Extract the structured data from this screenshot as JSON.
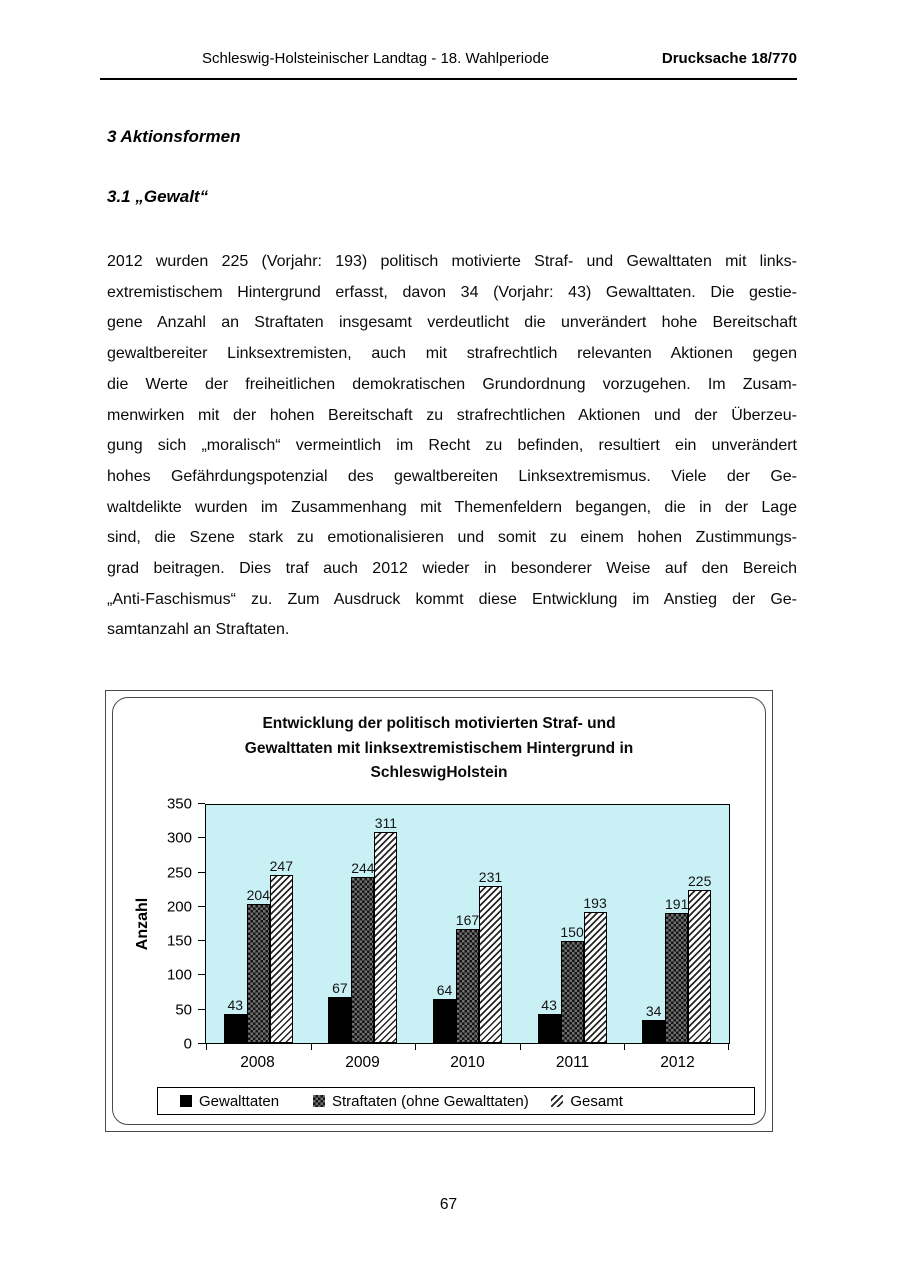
{
  "header": {
    "left": "Schleswig-Holsteinischer Landtag - 18. Wahlperiode",
    "right": "Drucksache 18/770"
  },
  "headings": {
    "section": "3 Aktionsformen",
    "subsection": "3.1 „Gewalt“"
  },
  "body": {
    "paragraph_lines": [
      "2012 wurden 225 (Vorjahr: 193) politisch motivierte Straf- und Gewalttaten mit links-",
      "extremistischem Hintergrund erfasst, davon 34 (Vorjahr: 43) Gewalttaten. Die gestie-",
      "gene Anzahl an Straftaten insgesamt verdeutlicht die unverändert hohe Bereitschaft",
      "gewaltbereiter Linksextremisten, auch mit strafrechtlich relevanten Aktionen gegen",
      "die Werte der freiheitlichen demokratischen Grundordnung vorzugehen. Im Zusam-",
      "menwirken mit der hohen Bereitschaft zu strafrechtlichen Aktionen und der Überzeu-",
      "gung sich „moralisch“ vermeintlich im Recht zu befinden, resultiert ein unverändert",
      "hohes Gefährdungspotenzial des gewaltbereiten Linksextremismus. Viele der Ge-",
      "waltdelikte wurden im Zusammenhang mit Themenfeldern begangen, die in der Lage",
      "sind, die Szene stark zu emotionalisieren und somit zu einem hohen Zustimmungs-",
      "grad beitragen. Dies traf auch 2012 wieder in besonderer Weise auf den Bereich",
      "„Anti-Faschismus“ zu. Zum Ausdruck kommt diese Entwicklung im Anstieg der Ge-",
      "samtanzahl an Straftaten."
    ]
  },
  "chart_data": {
    "type": "bar",
    "title": "Entwicklung der politisch motivierten Straf- und Gewalttaten mit linksextremistischem Hintergrund in SchleswigHolstein",
    "title_lines": [
      "Entwicklung der politisch motivierten Straf- und",
      "Gewalttaten mit linksextremistischem Hintergrund in",
      "SchleswigHolstein"
    ],
    "xlabel": "",
    "ylabel": "Anzahl",
    "ylim": [
      0,
      350
    ],
    "yticks": [
      0,
      50,
      100,
      150,
      200,
      250,
      300,
      350
    ],
    "categories": [
      "2008",
      "2009",
      "2010",
      "2011",
      "2012"
    ],
    "series": [
      {
        "name": "Gewalttaten",
        "pattern": "solid-black",
        "values": [
          43,
          67,
          64,
          43,
          34
        ]
      },
      {
        "name": "Straftaten (ohne Gewalttaten)",
        "pattern": "black-checker",
        "values": [
          204,
          244,
          167,
          150,
          191
        ]
      },
      {
        "name": "Gesamt",
        "pattern": "white-diagonal-stripes",
        "values": [
          247,
          311,
          231,
          193,
          225
        ]
      }
    ],
    "data_labels": true,
    "grid": false,
    "legend_position": "bottom",
    "plot_bg_color": "#c9f1f5",
    "text_color": "#000000"
  },
  "footer": {
    "page_number": "67"
  }
}
